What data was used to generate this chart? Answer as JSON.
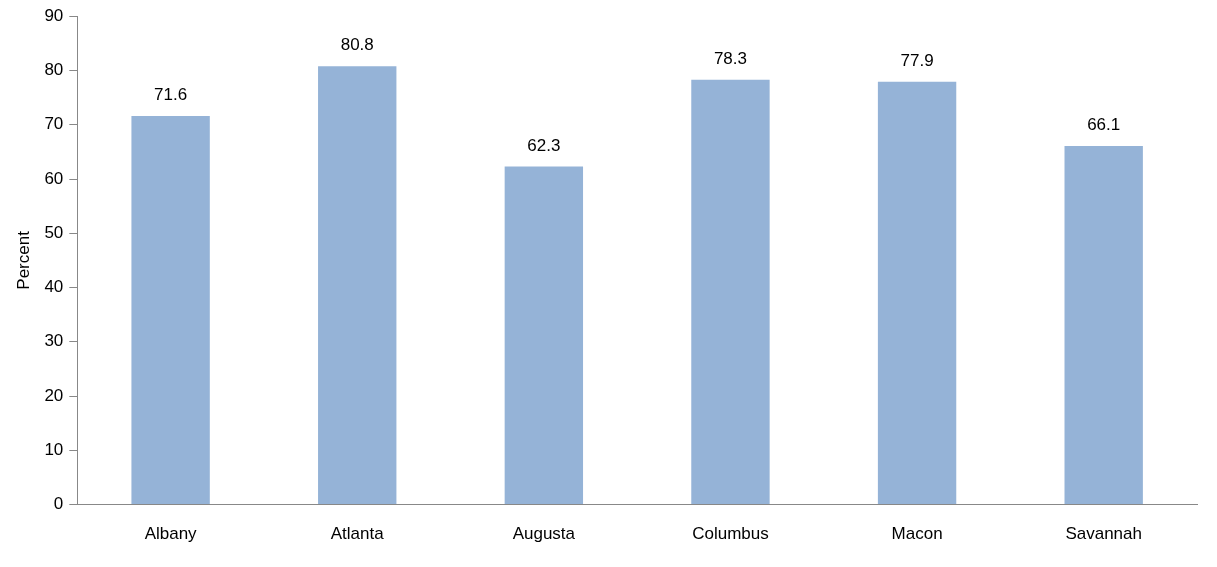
{
  "chart_data": {
    "type": "bar",
    "ylabel": "Percent",
    "categories": [
      "Albany",
      "Atlanta",
      "Augusta",
      "Columbus",
      "Macon",
      "Savannah"
    ],
    "values": [
      71.6,
      80.8,
      62.3,
      78.3,
      77.9,
      66.1
    ],
    "color": "#95b3d7",
    "ylim": [
      0,
      90
    ],
    "yticks": [
      0,
      10,
      20,
      30,
      40,
      50,
      60,
      70,
      80,
      90
    ],
    "grid": false,
    "legend": false,
    "data_labels": true
  }
}
